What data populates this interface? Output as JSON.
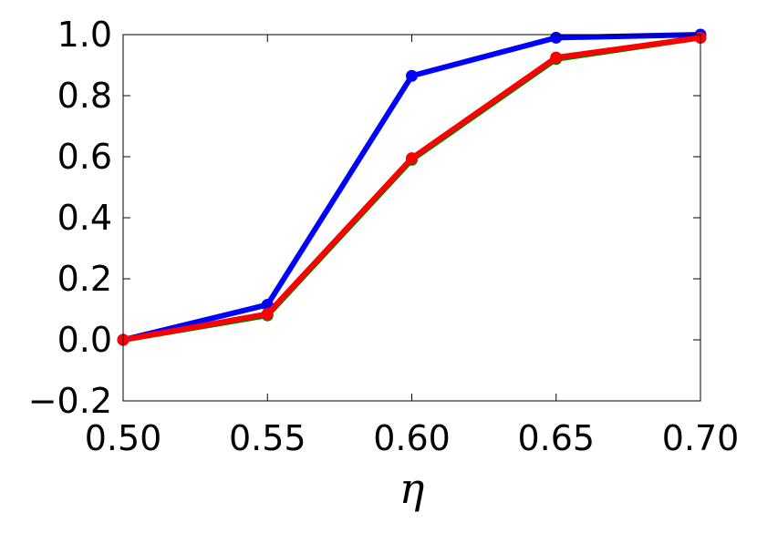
{
  "chart_data": {
    "type": "line",
    "title": "",
    "xlabel": "η",
    "ylabel": "",
    "xlim": [
      0.5,
      0.7
    ],
    "ylim": [
      -0.2,
      1.0
    ],
    "x_ticks": [
      "0.50",
      "0.55",
      "0.60",
      "0.65",
      "0.70"
    ],
    "y_ticks": [
      "−0.2",
      "0.0",
      "0.2",
      "0.4",
      "0.6",
      "0.8",
      "1.0"
    ],
    "x_tick_values": [
      0.5,
      0.55,
      0.6,
      0.65,
      0.7
    ],
    "y_tick_values": [
      -0.2,
      0.0,
      0.2,
      0.4,
      0.6,
      0.8,
      1.0
    ],
    "grid": false,
    "legend": "none",
    "x": [
      0.5,
      0.55,
      0.6,
      0.65,
      0.7
    ],
    "series": [
      {
        "color": "#008000",
        "values": [
          0.0,
          0.08,
          0.59,
          0.92,
          0.99
        ]
      },
      {
        "color": "#0000ff",
        "values": [
          0.0,
          0.115,
          0.865,
          0.99,
          1.0
        ]
      },
      {
        "color": "#ff0000",
        "values": [
          0.0,
          0.085,
          0.595,
          0.925,
          0.99
        ]
      }
    ]
  }
}
